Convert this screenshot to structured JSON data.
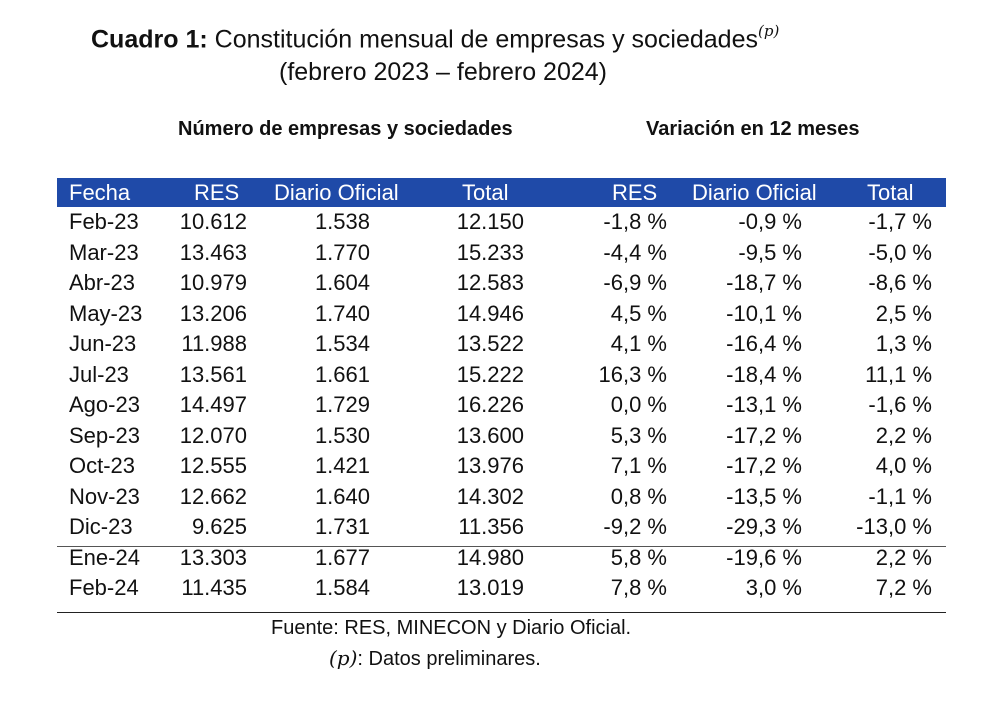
{
  "title": {
    "label": "Cuadro 1:",
    "text": "Constitución mensual de empresas y sociedades",
    "superscript": "(p)",
    "subtitle": "(febrero 2023 – febrero 2024)"
  },
  "groups": {
    "left": "Número de empresas y sociedades",
    "right": "Variación en 12 meses"
  },
  "columns": [
    "Fecha",
    "RES",
    "Diario Oficial",
    "Total",
    "RES",
    "Diario Oficial",
    "Total"
  ],
  "rows": [
    [
      "Feb-23",
      "10.612",
      "1.538",
      "12.150",
      "-1,8 %",
      "-0,9 %",
      "-1,7 %"
    ],
    [
      "Mar-23",
      "13.463",
      "1.770",
      "15.233",
      "-4,4 %",
      "-9,5 %",
      "-5,0 %"
    ],
    [
      "Abr-23",
      "10.979",
      "1.604",
      "12.583",
      "-6,9 %",
      "-18,7 %",
      "-8,6 %"
    ],
    [
      "May-23",
      "13.206",
      "1.740",
      "14.946",
      "4,5 %",
      "-10,1 %",
      "2,5 %"
    ],
    [
      "Jun-23",
      "11.988",
      "1.534",
      "13.522",
      "4,1 %",
      "-16,4 %",
      "1,3 %"
    ],
    [
      "Jul-23",
      "13.561",
      "1.661",
      "15.222",
      "16,3 %",
      "-18,4 %",
      "11,1 %"
    ],
    [
      "Ago-23",
      "14.497",
      "1.729",
      "16.226",
      "0,0 %",
      "-13,1 %",
      "-1,6 %"
    ],
    [
      "Sep-23",
      "12.070",
      "1.530",
      "13.600",
      "5,3 %",
      "-17,2 %",
      "2,2 %"
    ],
    [
      "Oct-23",
      "12.555",
      "1.421",
      "13.976",
      "7,1 %",
      "-17,2 %",
      "4,0 %"
    ],
    [
      "Nov-23",
      "12.662",
      "1.640",
      "14.302",
      "0,8 %",
      "-13,5 %",
      "-1,1 %"
    ],
    [
      "Dic-23",
      "9.625",
      "1.731",
      "11.356",
      "-9,2 %",
      "-29,3 %",
      "-13,0 %"
    ],
    [
      "Ene-24",
      "13.303",
      "1.677",
      "14.980",
      "5,8 %",
      "-19,6 %",
      "2,2 %"
    ],
    [
      "Feb-24",
      "11.435",
      "1.584",
      "13.019",
      "7,8 %",
      "3,0 %",
      "7,2 %"
    ]
  ],
  "notes": {
    "source": "Fuente: RES, MINECON y Diario Oficial.",
    "prelim_symbol": "(p)",
    "prelim_text": ": Datos preliminares."
  },
  "colors": {
    "header_bg": "#1f4aa8",
    "header_text": "#ffffff"
  }
}
